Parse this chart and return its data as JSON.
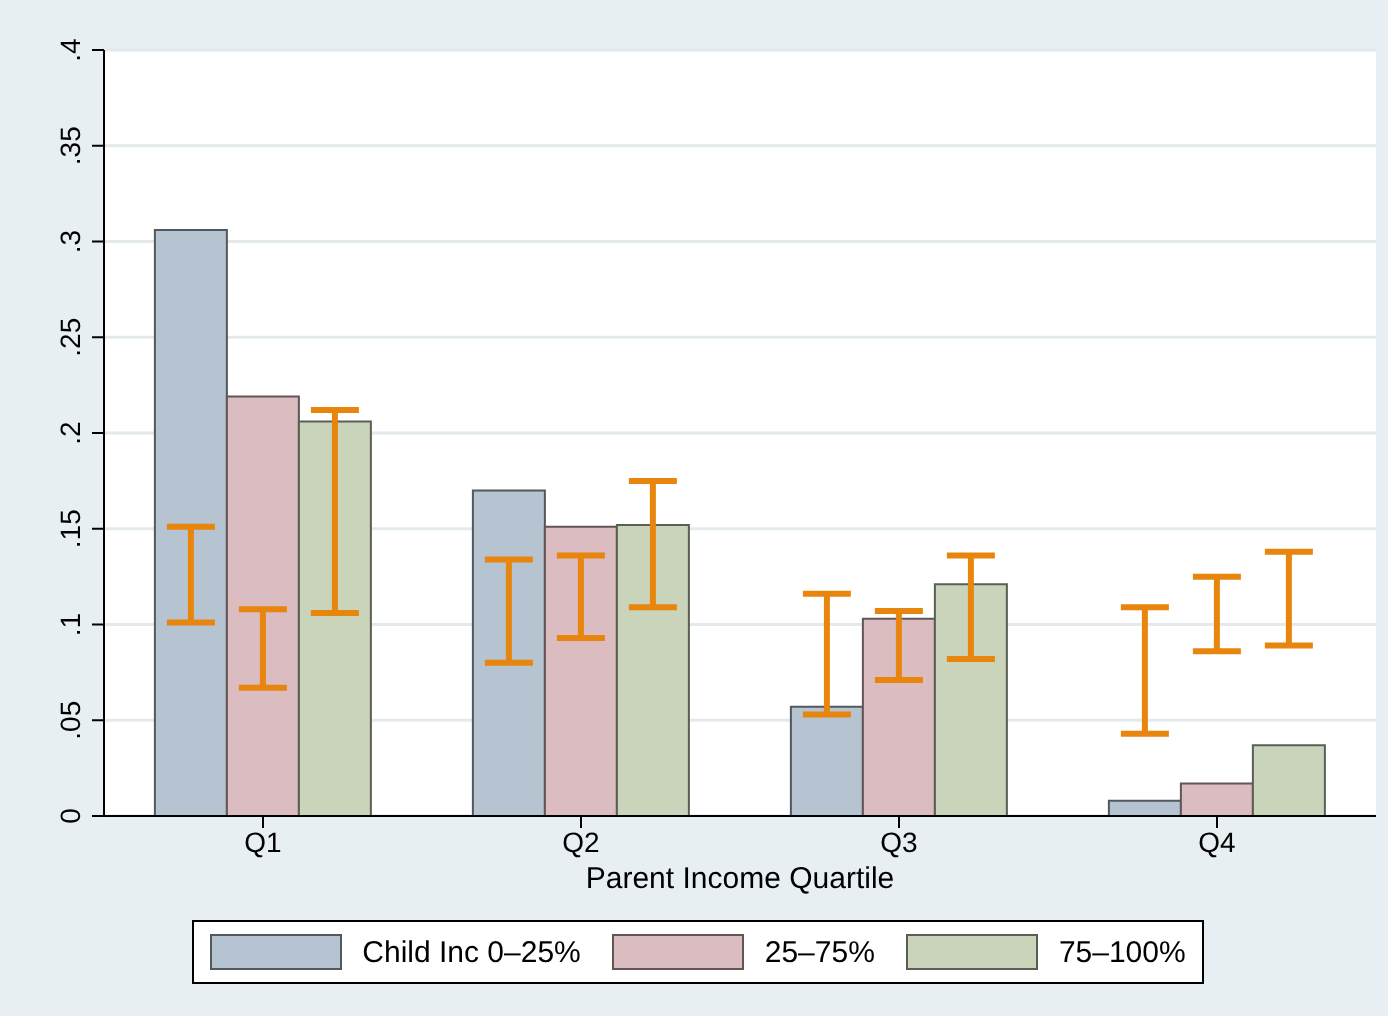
{
  "chart_data": {
    "type": "bar",
    "xlabel": "Parent Income Quartile",
    "categories": [
      "Q1",
      "Q2",
      "Q3",
      "Q4"
    ],
    "series": [
      {
        "name": "Child Inc 0–25%",
        "color": "#b6c3d1",
        "values": [
          0.306,
          0.17,
          0.057,
          0.008
        ],
        "errors": [
          [
            0.101,
            0.151
          ],
          [
            0.08,
            0.134
          ],
          [
            0.053,
            0.116
          ],
          [
            0.043,
            0.109
          ]
        ]
      },
      {
        "name": "25–75%",
        "color": "#dbbcc0",
        "values": [
          0.219,
          0.151,
          0.103,
          0.017
        ],
        "errors": [
          [
            0.067,
            0.108
          ],
          [
            0.093,
            0.136
          ],
          [
            0.071,
            0.107
          ],
          [
            0.086,
            0.125
          ]
        ]
      },
      {
        "name": "75–100%",
        "color": "#c9d4bb",
        "values": [
          0.206,
          0.152,
          0.121,
          0.037
        ],
        "errors": [
          [
            0.106,
            0.212
          ],
          [
            0.109,
            0.175
          ],
          [
            0.082,
            0.136
          ],
          [
            0.089,
            0.138
          ]
        ]
      }
    ],
    "ylim": [
      0,
      0.4
    ],
    "yticks": [
      {
        "value": 0,
        "label": "0"
      },
      {
        "value": 0.05,
        "label": ".05"
      },
      {
        "value": 0.1,
        "label": ".1"
      },
      {
        "value": 0.15,
        "label": ".15"
      },
      {
        "value": 0.2,
        "label": ".2"
      },
      {
        "value": 0.25,
        "label": ".25"
      },
      {
        "value": 0.3,
        "label": ".3"
      },
      {
        "value": 0.35,
        "label": ".35"
      },
      {
        "value": 0.4,
        "label": ".4"
      }
    ],
    "grid": "y",
    "legend": "bottom"
  }
}
